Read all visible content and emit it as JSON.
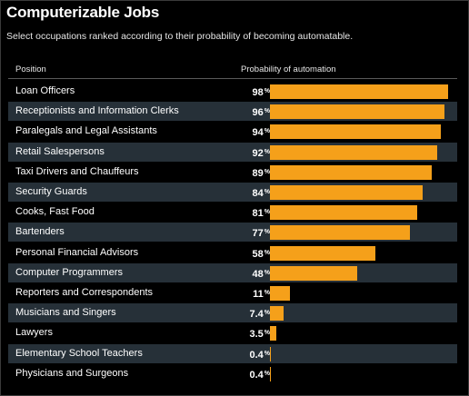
{
  "chart_data": {
    "type": "bar",
    "orientation": "horizontal",
    "title": "Computerizable Jobs",
    "subtitle": "Select occupations ranked according to their probability of becoming automatable.",
    "column_headers": {
      "category": "Position",
      "value": "Probability of automation"
    },
    "unit": "%",
    "bar_color": "#f5a01a",
    "xlim": [
      0,
      100
    ],
    "categories": [
      "Loan Officers",
      "Receptionists and Information Clerks",
      "Paralegals and Legal Assistants",
      "Retail Salespersons",
      "Taxi Drivers and Chauffeurs",
      "Security Guards",
      "Cooks, Fast Food",
      "Bartenders",
      "Personal Financial Advisors",
      "Computer Programmers",
      "Reporters and Correspondents",
      "Musicians and Singers",
      "Lawyers",
      "Elementary School Teachers",
      "Physicians and Surgeons"
    ],
    "values": [
      98,
      96,
      94,
      92,
      89,
      84,
      81,
      77,
      58,
      48,
      11,
      7.4,
      3.5,
      0.4,
      0.4
    ],
    "value_labels": [
      "98",
      "96",
      "94",
      "92",
      "89",
      "84",
      "81",
      "77",
      "58",
      "48",
      "11",
      "7.4",
      "3.5",
      "0.4",
      "0.4"
    ]
  }
}
